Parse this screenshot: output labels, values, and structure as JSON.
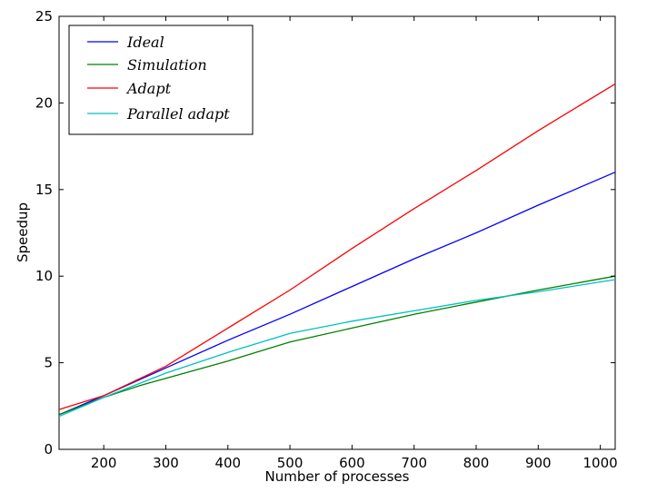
{
  "chart_data": {
    "type": "line",
    "title": "",
    "xlabel": "Number of processes",
    "ylabel": "Speedup",
    "xlim": [
      128,
      1024
    ],
    "ylim": [
      0,
      25
    ],
    "xticks": [
      200,
      300,
      400,
      500,
      600,
      700,
      800,
      900,
      1000
    ],
    "yticks": [
      0,
      5,
      10,
      15,
      20,
      25
    ],
    "grid": false,
    "legend_position": "top-left",
    "series": [
      {
        "name": "Ideal",
        "color": "#0000ff",
        "x": [
          128,
          200,
          300,
          400,
          500,
          600,
          700,
          800,
          900,
          1024
        ],
        "y": [
          2.0,
          3.1,
          4.7,
          6.3,
          7.8,
          9.4,
          11.0,
          12.5,
          14.1,
          16.0
        ]
      },
      {
        "name": "Simulation",
        "color": "#008000",
        "x": [
          128,
          200,
          260,
          300,
          400,
          500,
          600,
          700,
          800,
          900,
          1024
        ],
        "y": [
          2.0,
          3.0,
          3.7,
          4.1,
          5.1,
          6.2,
          7.0,
          7.8,
          8.5,
          9.2,
          10.0
        ]
      },
      {
        "name": "Adapt",
        "color": "#ff0000",
        "x": [
          128,
          200,
          300,
          400,
          500,
          600,
          700,
          800,
          900,
          1024
        ],
        "y": [
          2.3,
          3.1,
          4.8,
          7.0,
          9.2,
          11.6,
          13.9,
          16.1,
          18.4,
          21.1
        ]
      },
      {
        "name": "Parallel adapt",
        "color": "#00bfbf",
        "x": [
          128,
          200,
          300,
          400,
          500,
          600,
          700,
          800,
          900,
          1024
        ],
        "y": [
          1.9,
          3.0,
          4.4,
          5.6,
          6.7,
          7.4,
          8.0,
          8.6,
          9.1,
          9.8
        ]
      }
    ]
  }
}
